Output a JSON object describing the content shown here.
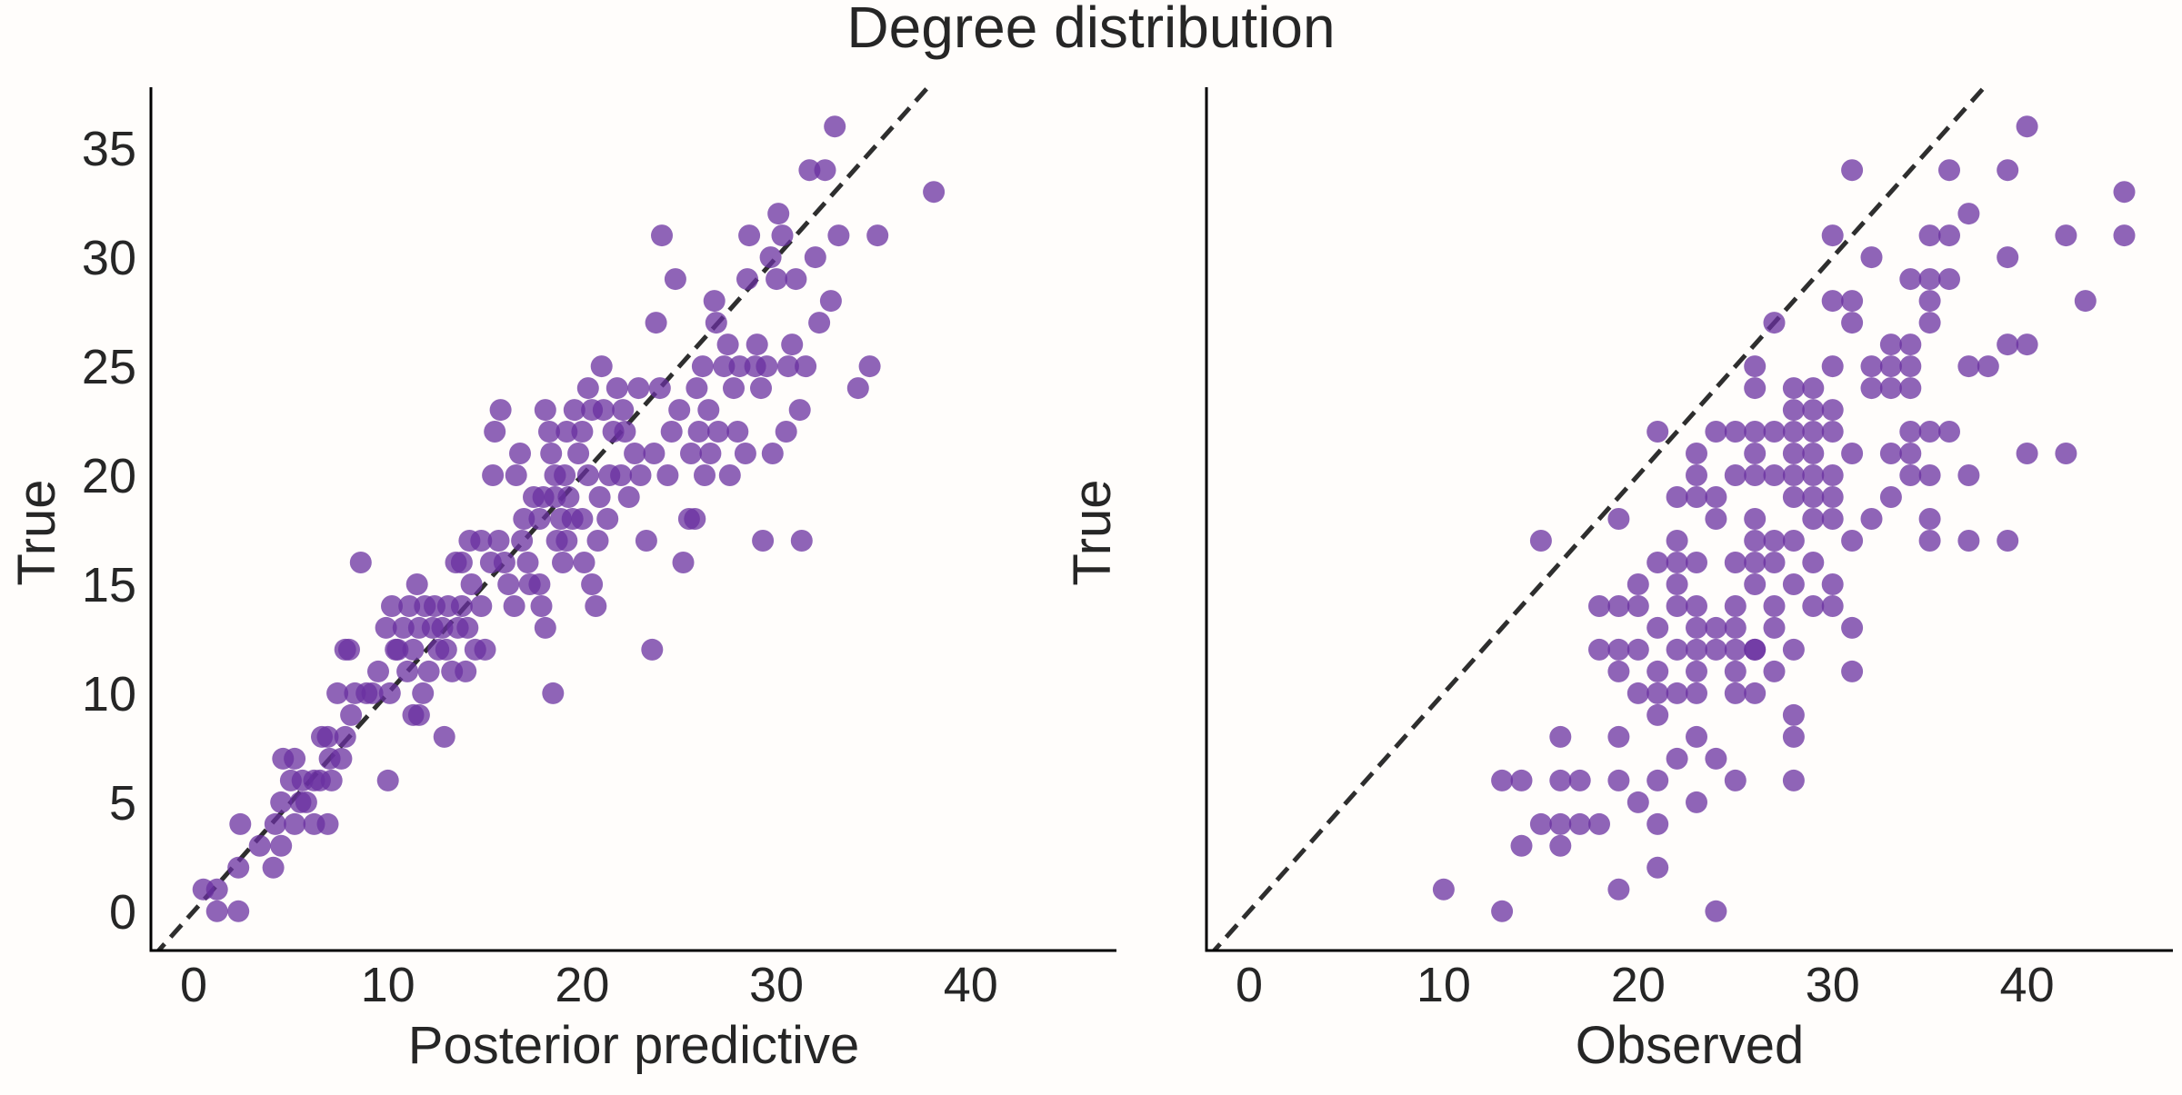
{
  "figure": {
    "title": "Degree distribution"
  },
  "chart_data": [
    {
      "type": "scatter",
      "xlabel": "Posterior predictive",
      "ylabel": "True",
      "xlim": [
        -2.2,
        47.5
      ],
      "ylim": [
        -1.8,
        37.8
      ],
      "xticks": [
        0,
        10,
        20,
        30,
        40
      ],
      "yticks": [
        0,
        5,
        10,
        15,
        20,
        25,
        30,
        35
      ],
      "show_yticklabels": true,
      "grid": false,
      "reference_line": "y = x (dashed)",
      "marker_color": "#6a30a0",
      "points": [
        [
          0.5,
          1
        ],
        [
          1.2,
          1
        ],
        [
          1.2,
          0
        ],
        [
          2.3,
          0
        ],
        [
          2.3,
          2
        ],
        [
          2.4,
          4
        ],
        [
          3.4,
          3
        ],
        [
          4.1,
          2
        ],
        [
          4.2,
          4
        ],
        [
          4.5,
          3
        ],
        [
          4.5,
          5
        ],
        [
          4.6,
          7
        ],
        [
          5.2,
          7
        ],
        [
          5.0,
          6
        ],
        [
          5.2,
          4
        ],
        [
          5.5,
          5
        ],
        [
          5.6,
          6
        ],
        [
          5.8,
          5
        ],
        [
          6.2,
          4
        ],
        [
          6.2,
          6
        ],
        [
          6.5,
          6
        ],
        [
          6.6,
          8
        ],
        [
          6.9,
          8
        ],
        [
          7.1,
          6
        ],
        [
          6.9,
          4
        ],
        [
          7.0,
          7
        ],
        [
          7.6,
          7
        ],
        [
          7.8,
          8
        ],
        [
          7.4,
          10
        ],
        [
          7.8,
          12
        ],
        [
          8.0,
          12
        ],
        [
          8.1,
          9
        ],
        [
          8.3,
          10
        ],
        [
          8.6,
          16
        ],
        [
          8.9,
          10
        ],
        [
          9.2,
          10
        ],
        [
          9.5,
          11
        ],
        [
          9.9,
          13
        ],
        [
          10.0,
          6
        ],
        [
          10.1,
          10
        ],
        [
          10.4,
          12
        ],
        [
          10.2,
          14
        ],
        [
          10.5,
          12
        ],
        [
          10.8,
          13
        ],
        [
          11.0,
          11
        ],
        [
          11.3,
          12
        ],
        [
          11.1,
          14
        ],
        [
          11.3,
          9
        ],
        [
          11.6,
          9
        ],
        [
          11.5,
          15
        ],
        [
          11.8,
          10
        ],
        [
          11.6,
          13
        ],
        [
          12.1,
          11
        ],
        [
          11.9,
          14
        ],
        [
          12.3,
          13
        ],
        [
          12.6,
          12
        ],
        [
          12.4,
          14
        ],
        [
          12.8,
          13
        ],
        [
          12.9,
          8
        ],
        [
          13.1,
          14
        ],
        [
          13.0,
          12
        ],
        [
          13.5,
          16
        ],
        [
          13.6,
          13
        ],
        [
          13.8,
          14
        ],
        [
          13.3,
          11
        ],
        [
          14.0,
          11
        ],
        [
          14.1,
          13
        ],
        [
          13.8,
          16
        ],
        [
          14.2,
          17
        ],
        [
          14.5,
          12
        ],
        [
          14.8,
          14
        ],
        [
          14.3,
          15
        ],
        [
          14.8,
          17
        ],
        [
          15.0,
          12
        ],
        [
          15.3,
          16
        ],
        [
          15.7,
          17
        ],
        [
          15.4,
          20
        ],
        [
          15.5,
          22
        ],
        [
          15.8,
          23
        ],
        [
          16.0,
          16
        ],
        [
          16.2,
          15
        ],
        [
          16.5,
          14
        ],
        [
          16.6,
          20
        ],
        [
          16.8,
          21
        ],
        [
          16.9,
          17
        ],
        [
          17.0,
          18
        ],
        [
          17.2,
          16
        ],
        [
          17.3,
          15
        ],
        [
          17.5,
          19
        ],
        [
          17.8,
          15
        ],
        [
          17.9,
          14
        ],
        [
          18.0,
          19
        ],
        [
          18.1,
          13
        ],
        [
          18.3,
          22
        ],
        [
          18.1,
          23
        ],
        [
          17.8,
          18
        ],
        [
          18.6,
          19
        ],
        [
          18.7,
          17
        ],
        [
          18.6,
          20
        ],
        [
          18.4,
          21
        ],
        [
          18.5,
          10
        ],
        [
          18.9,
          18
        ],
        [
          19.0,
          16
        ],
        [
          19.2,
          17
        ],
        [
          19.5,
          18
        ],
        [
          19.3,
          19
        ],
        [
          19.6,
          23
        ],
        [
          19.2,
          22
        ],
        [
          19.1,
          20
        ],
        [
          19.8,
          21
        ],
        [
          20.0,
          22
        ],
        [
          20.3,
          24
        ],
        [
          20.5,
          23
        ],
        [
          20.3,
          20
        ],
        [
          20.0,
          18
        ],
        [
          20.1,
          16
        ],
        [
          20.5,
          15
        ],
        [
          20.7,
          14
        ],
        [
          20.8,
          17
        ],
        [
          20.9,
          19
        ],
        [
          21.0,
          25
        ],
        [
          21.1,
          23
        ],
        [
          21.3,
          18
        ],
        [
          21.4,
          20
        ],
        [
          21.6,
          22
        ],
        [
          21.8,
          24
        ],
        [
          22.0,
          20
        ],
        [
          22.1,
          23
        ],
        [
          22.2,
          22
        ],
        [
          22.4,
          19
        ],
        [
          22.7,
          21
        ],
        [
          22.9,
          24
        ],
        [
          23.0,
          20
        ],
        [
          23.3,
          17
        ],
        [
          23.6,
          12
        ],
        [
          23.7,
          21
        ],
        [
          23.8,
          27
        ],
        [
          24.0,
          24
        ],
        [
          24.1,
          31
        ],
        [
          24.4,
          20
        ],
        [
          24.6,
          22
        ],
        [
          24.8,
          29
        ],
        [
          25.0,
          23
        ],
        [
          25.2,
          16
        ],
        [
          25.5,
          18
        ],
        [
          25.6,
          21
        ],
        [
          25.8,
          18
        ],
        [
          25.9,
          24
        ],
        [
          26.0,
          22
        ],
        [
          26.2,
          25
        ],
        [
          26.3,
          20
        ],
        [
          26.5,
          23
        ],
        [
          26.6,
          21
        ],
        [
          26.8,
          28
        ],
        [
          26.9,
          27
        ],
        [
          27.0,
          22
        ],
        [
          27.3,
          25
        ],
        [
          27.5,
          26
        ],
        [
          27.6,
          20
        ],
        [
          27.8,
          24
        ],
        [
          28.0,
          22
        ],
        [
          28.1,
          25
        ],
        [
          28.4,
          21
        ],
        [
          28.5,
          29
        ],
        [
          28.6,
          31
        ],
        [
          28.9,
          25
        ],
        [
          29.0,
          26
        ],
        [
          29.2,
          24
        ],
        [
          29.3,
          17
        ],
        [
          29.5,
          25
        ],
        [
          29.7,
          30
        ],
        [
          29.8,
          21
        ],
        [
          30.0,
          29
        ],
        [
          30.1,
          32
        ],
        [
          30.3,
          31
        ],
        [
          30.5,
          22
        ],
        [
          30.6,
          25
        ],
        [
          30.8,
          26
        ],
        [
          31.0,
          29
        ],
        [
          31.2,
          23
        ],
        [
          31.3,
          17
        ],
        [
          31.5,
          25
        ],
        [
          31.7,
          34
        ],
        [
          32.0,
          30
        ],
        [
          32.2,
          27
        ],
        [
          32.5,
          34
        ],
        [
          32.8,
          28
        ],
        [
          33.0,
          36
        ],
        [
          33.2,
          31
        ],
        [
          34.2,
          24
        ],
        [
          34.8,
          25
        ],
        [
          35.2,
          31
        ],
        [
          38.1,
          33
        ]
      ]
    },
    {
      "type": "scatter",
      "xlabel": "Observed",
      "ylabel": "True",
      "xlim": [
        -2.2,
        47.5
      ],
      "ylim": [
        -1.8,
        37.8
      ],
      "xticks": [
        0,
        10,
        20,
        30,
        40
      ],
      "yticks": [
        0,
        5,
        10,
        15,
        20,
        25,
        30,
        35
      ],
      "show_yticklabels": false,
      "grid": false,
      "reference_line": "y = x (dashed)",
      "marker_color": "#6a30a0",
      "points": [
        [
          10,
          1
        ],
        [
          13,
          0
        ],
        [
          13,
          6
        ],
        [
          14,
          6
        ],
        [
          14,
          3
        ],
        [
          15,
          4
        ],
        [
          15,
          17
        ],
        [
          16,
          8
        ],
        [
          16,
          6
        ],
        [
          16,
          4
        ],
        [
          16,
          3
        ],
        [
          17,
          6
        ],
        [
          17,
          4
        ],
        [
          18,
          4
        ],
        [
          18,
          12
        ],
        [
          18,
          14
        ],
        [
          19,
          14
        ],
        [
          19,
          11
        ],
        [
          19,
          8
        ],
        [
          19,
          6
        ],
        [
          19,
          1
        ],
        [
          19,
          12
        ],
        [
          19,
          18
        ],
        [
          20,
          10
        ],
        [
          20,
          12
        ],
        [
          20,
          15
        ],
        [
          20,
          14
        ],
        [
          20,
          5
        ],
        [
          21,
          11
        ],
        [
          21,
          10
        ],
        [
          21,
          9
        ],
        [
          21,
          13
        ],
        [
          21,
          16
        ],
        [
          21,
          22
        ],
        [
          21,
          2
        ],
        [
          21,
          6
        ],
        [
          21,
          4
        ],
        [
          22,
          10
        ],
        [
          22,
          14
        ],
        [
          22,
          17
        ],
        [
          22,
          19
        ],
        [
          22,
          7
        ],
        [
          22,
          16
        ],
        [
          22,
          15
        ],
        [
          22,
          12
        ],
        [
          23,
          13
        ],
        [
          23,
          12
        ],
        [
          23,
          11
        ],
        [
          23,
          10
        ],
        [
          23,
          14
        ],
        [
          23,
          21
        ],
        [
          23,
          20
        ],
        [
          23,
          5
        ],
        [
          23,
          8
        ],
        [
          23,
          16
        ],
        [
          23,
          19
        ],
        [
          24,
          7
        ],
        [
          24,
          13
        ],
        [
          24,
          12
        ],
        [
          24,
          19
        ],
        [
          24,
          22
        ],
        [
          24,
          0
        ],
        [
          24,
          18
        ],
        [
          25,
          11
        ],
        [
          25,
          12
        ],
        [
          25,
          14
        ],
        [
          25,
          13
        ],
        [
          25,
          16
        ],
        [
          25,
          10
        ],
        [
          25,
          20
        ],
        [
          25,
          22
        ],
        [
          25,
          6
        ],
        [
          26,
          17
        ],
        [
          26,
          15
        ],
        [
          26,
          16
        ],
        [
          26,
          18
        ],
        [
          26,
          20
        ],
        [
          26,
          21
        ],
        [
          26,
          22
        ],
        [
          26,
          24
        ],
        [
          26,
          25
        ],
        [
          26,
          12
        ],
        [
          26,
          10
        ],
        [
          26,
          12
        ],
        [
          27,
          11
        ],
        [
          27,
          14
        ],
        [
          27,
          16
        ],
        [
          27,
          20
        ],
        [
          27,
          22
        ],
        [
          27,
          27
        ],
        [
          27,
          13
        ],
        [
          27,
          17
        ],
        [
          28,
          15
        ],
        [
          28,
          17
        ],
        [
          28,
          19
        ],
        [
          28,
          20
        ],
        [
          28,
          21
        ],
        [
          28,
          23
        ],
        [
          28,
          24
        ],
        [
          28,
          12
        ],
        [
          28,
          9
        ],
        [
          28,
          8
        ],
        [
          28,
          6
        ],
        [
          28,
          22
        ],
        [
          29,
          18
        ],
        [
          29,
          20
        ],
        [
          29,
          22
        ],
        [
          29,
          24
        ],
        [
          29,
          19
        ],
        [
          29,
          16
        ],
        [
          29,
          21
        ],
        [
          29,
          23
        ],
        [
          29,
          14
        ],
        [
          30,
          14
        ],
        [
          30,
          18
        ],
        [
          30,
          19
        ],
        [
          30,
          20
        ],
        [
          30,
          23
        ],
        [
          30,
          25
        ],
        [
          30,
          22
        ],
        [
          30,
          15
        ],
        [
          30,
          31
        ],
        [
          30,
          28
        ],
        [
          31,
          11
        ],
        [
          31,
          13
        ],
        [
          31,
          17
        ],
        [
          31,
          21
        ],
        [
          31,
          27
        ],
        [
          31,
          28
        ],
        [
          31,
          34
        ],
        [
          32,
          18
        ],
        [
          32,
          24
        ],
        [
          32,
          25
        ],
        [
          32,
          30
        ],
        [
          33,
          19
        ],
        [
          33,
          21
        ],
        [
          33,
          24
        ],
        [
          33,
          25
        ],
        [
          33,
          26
        ],
        [
          34,
          20
        ],
        [
          34,
          22
        ],
        [
          34,
          25
        ],
        [
          34,
          26
        ],
        [
          34,
          29
        ],
        [
          34,
          21
        ],
        [
          34,
          24
        ],
        [
          35,
          17
        ],
        [
          35,
          18
        ],
        [
          35,
          20
        ],
        [
          35,
          22
        ],
        [
          35,
          27
        ],
        [
          35,
          29
        ],
        [
          35,
          31
        ],
        [
          35,
          28
        ],
        [
          36,
          22
        ],
        [
          36,
          29
        ],
        [
          36,
          31
        ],
        [
          36,
          34
        ],
        [
          37,
          20
        ],
        [
          37,
          17
        ],
        [
          37,
          25
        ],
        [
          37,
          32
        ],
        [
          38,
          25
        ],
        [
          39,
          17
        ],
        [
          39,
          26
        ],
        [
          39,
          30
        ],
        [
          39,
          34
        ],
        [
          40,
          26
        ],
        [
          40,
          21
        ],
        [
          40,
          36
        ],
        [
          42,
          21
        ],
        [
          42,
          31
        ],
        [
          43,
          28
        ],
        [
          45,
          31
        ],
        [
          45,
          33
        ]
      ]
    }
  ]
}
